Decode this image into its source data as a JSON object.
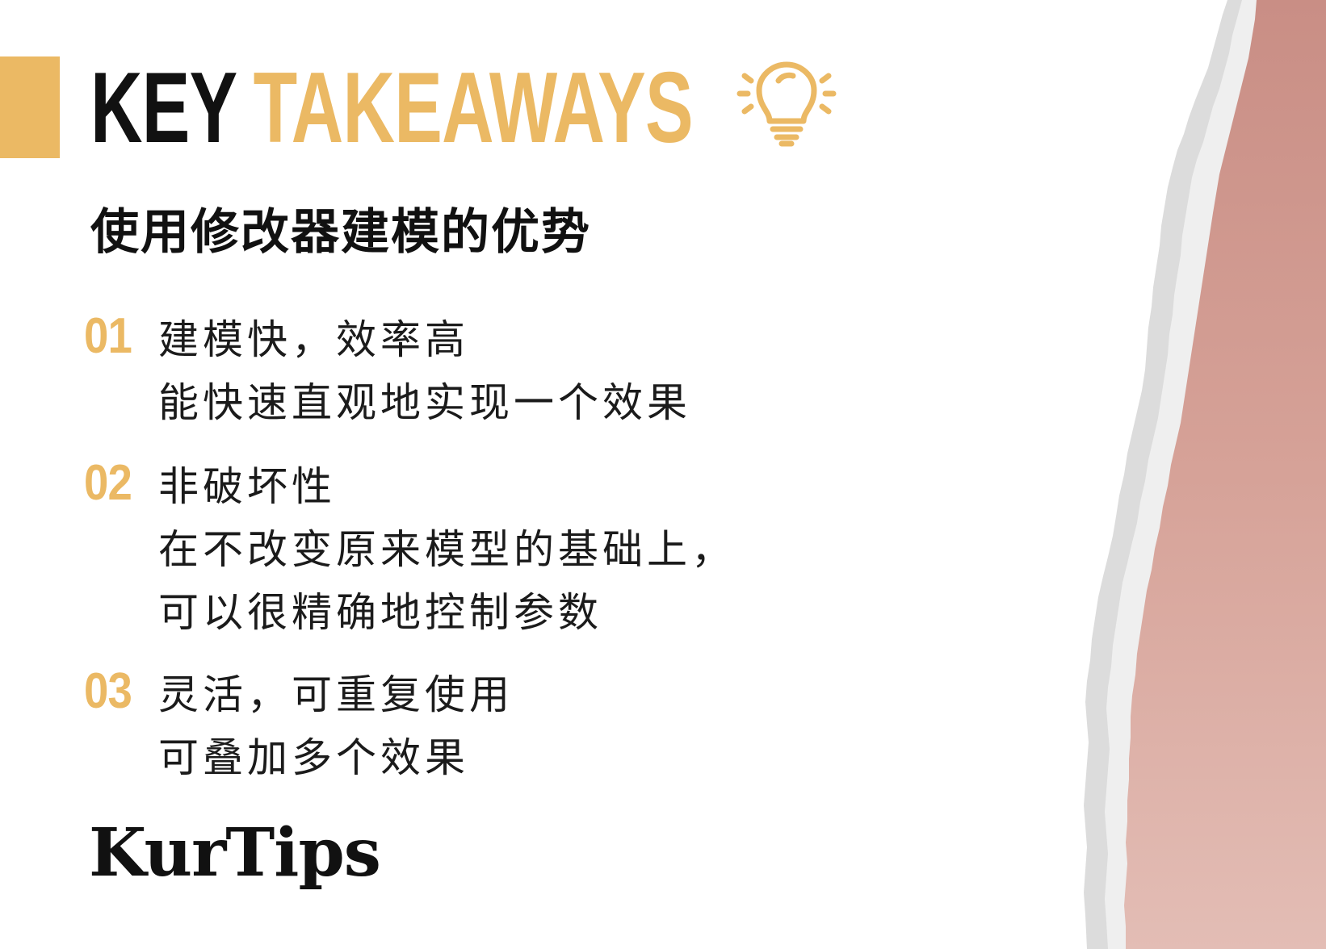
{
  "header": {
    "title_word1": "KEY",
    "title_word2": "TAKEAWAYS",
    "icon": "lightbulb-icon"
  },
  "subtitle": "使用修改器建模的优势",
  "items": [
    {
      "number": "01",
      "lines": [
        "建模快，效率高",
        "能快速直观地实现一个效果"
      ]
    },
    {
      "number": "02",
      "lines": [
        "非破坏性",
        "在不改变原来模型的基础上，",
        "可以很精确地控制参数"
      ]
    },
    {
      "number": "03",
      "lines": [
        "灵活，可重复使用",
        "可叠加多个效果"
      ]
    }
  ],
  "brand": "KurTips",
  "colors": {
    "accent": "#ebb964",
    "text": "#111111",
    "paper_edge": "#e4e4e4",
    "pink": "#d5a097"
  }
}
